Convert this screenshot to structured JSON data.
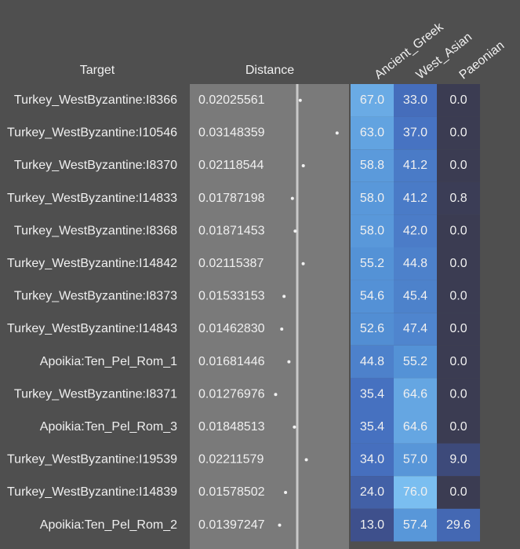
{
  "table": {
    "headers": [
      "Target",
      "Distance",
      "Ancient_Greek",
      "West_Asian",
      "Paeonian"
    ],
    "rows": [
      [
        "Turkey_WestByzantine:I8366",
        "0.02025561",
        "67.0",
        "33.0",
        "0.0"
      ],
      [
        "Turkey_WestByzantine:I10546",
        "0.03148359",
        "63.0",
        "37.0",
        "0.0"
      ],
      [
        "Turkey_WestByzantine:I8370",
        "0.02118544",
        "58.8",
        "41.2",
        "0.0"
      ],
      [
        "Turkey_WestByzantine:I14833",
        "0.01787198",
        "58.0",
        "41.2",
        "0.8"
      ],
      [
        "Turkey_WestByzantine:I8368",
        "0.01871453",
        "58.0",
        "42.0",
        "0.0"
      ],
      [
        "Turkey_WestByzantine:I14842",
        "0.02115387",
        "55.2",
        "44.8",
        "0.0"
      ],
      [
        "Turkey_WestByzantine:I8373",
        "0.01533153",
        "54.6",
        "45.4",
        "0.0"
      ],
      [
        "Turkey_WestByzantine:I14843",
        "0.01462830",
        "52.6",
        "47.4",
        "0.0"
      ],
      [
        "Apoikia:Ten_Pel_Rom_1",
        "0.01681446",
        "44.8",
        "55.2",
        "0.0"
      ],
      [
        "Turkey_WestByzantine:I8371",
        "0.01276976",
        "35.4",
        "64.6",
        "0.0"
      ],
      [
        "Apoikia:Ten_Pel_Rom_3",
        "0.01848513",
        "35.4",
        "64.6",
        "0.0"
      ],
      [
        "Turkey_WestByzantine:I19539",
        "0.02211579",
        "34.0",
        "57.0",
        "9.0"
      ],
      [
        "Turkey_WestByzantine:I14839",
        "0.01578502",
        "24.0",
        "76.0",
        "0.0"
      ],
      [
        "Apoikia:Ten_Pel_Rom_2",
        "0.01397247",
        "13.0",
        "57.4",
        "29.6"
      ]
    ]
  }
}
